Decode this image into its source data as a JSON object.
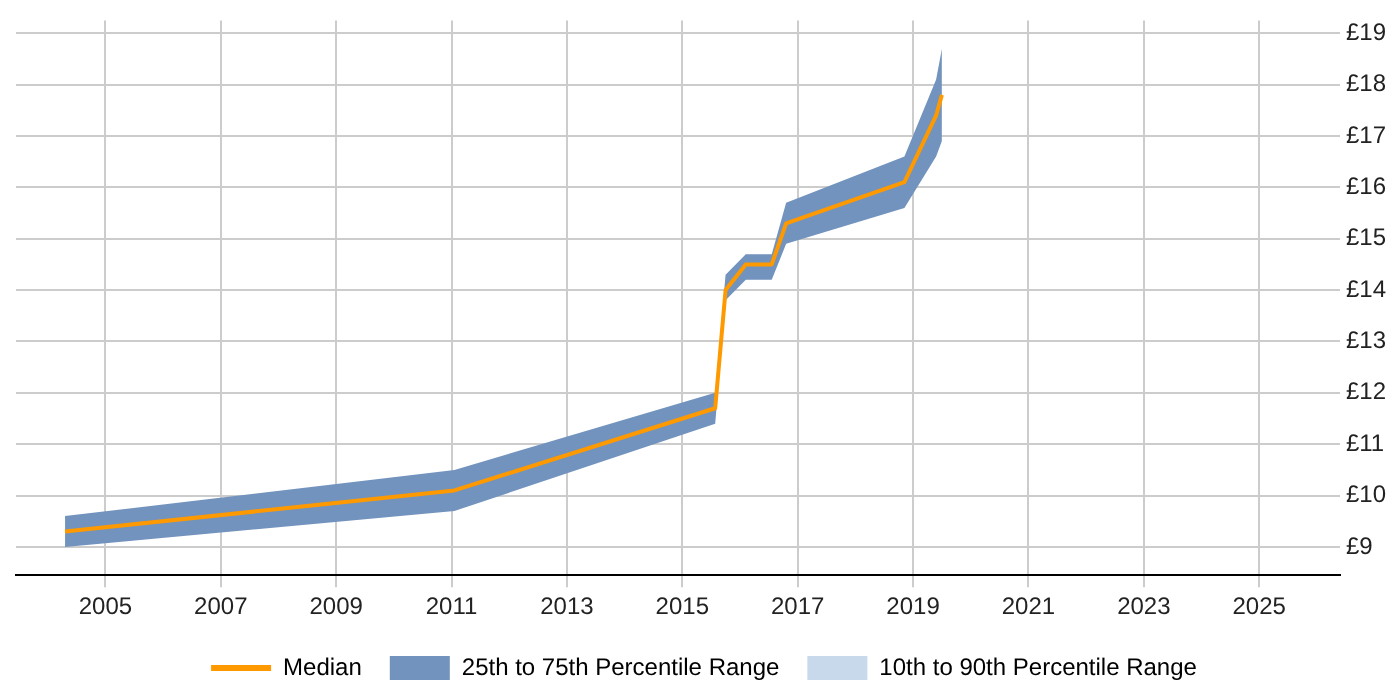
{
  "chart_data": {
    "type": "line",
    "x": [
      2004.3,
      2011.05,
      2015.57,
      2015.75,
      2016.1,
      2016.55,
      2016.8,
      2018.85,
      2019.4,
      2019.5
    ],
    "series": [
      {
        "name": "Median",
        "type": "line",
        "color": "#ff9900",
        "values": [
          9.3,
          10.1,
          11.7,
          14.0,
          14.5,
          14.5,
          15.3,
          16.1,
          17.4,
          17.8
        ],
        "lower": [
          9.0,
          9.7,
          11.4,
          13.8,
          14.2,
          14.2,
          14.9,
          15.6,
          16.6,
          16.9
        ],
        "upper": [
          9.6,
          10.5,
          12.0,
          14.3,
          14.7,
          14.7,
          15.7,
          16.6,
          18.1,
          18.7
        ]
      },
      {
        "name": "25th to 75th Percentile Range",
        "type": "area",
        "color": "#7293bd",
        "values": [
          null,
          null,
          null,
          null,
          null,
          null,
          null,
          null,
          null,
          null
        ]
      },
      {
        "name": "10th to 90th Percentile Range",
        "type": "area",
        "color": "#c8d9ec",
        "values": [
          null,
          null,
          null,
          null,
          null,
          null,
          null,
          null,
          null,
          null
        ]
      }
    ],
    "xlim": [
      2003.45,
      2026.4
    ],
    "xticks": [
      2005,
      2007,
      2009,
      2011,
      2013,
      2015,
      2017,
      2019,
      2021,
      2023,
      2025
    ],
    "ylim": [
      8.45,
      19.25
    ],
    "yticks": [
      {
        "value": 9,
        "label": "£9"
      },
      {
        "value": 10,
        "label": "£10"
      },
      {
        "value": 11,
        "label": "£11"
      },
      {
        "value": 12,
        "label": "£12"
      },
      {
        "value": 13,
        "label": "£13"
      },
      {
        "value": 14,
        "label": "£14"
      },
      {
        "value": 15,
        "label": "£15"
      },
      {
        "value": 16,
        "label": "£16"
      },
      {
        "value": 17,
        "label": "£17"
      },
      {
        "value": 18,
        "label": "£18"
      },
      {
        "value": 19,
        "label": "£19"
      }
    ],
    "grid": true,
    "legend": "bottom",
    "marker": "none",
    "line_style": "solid"
  }
}
